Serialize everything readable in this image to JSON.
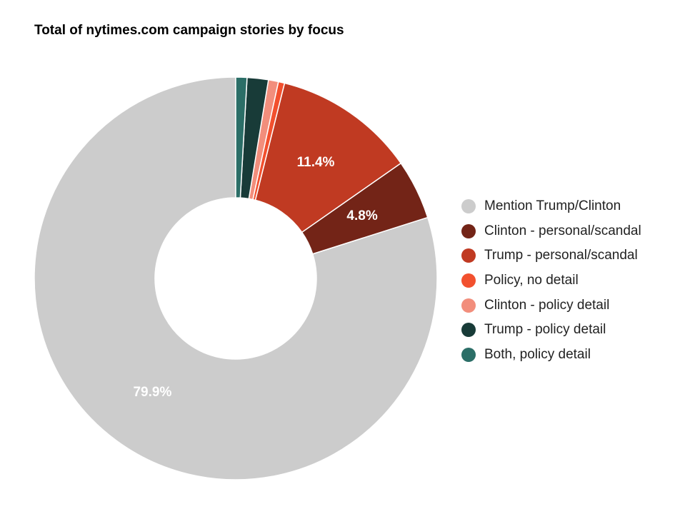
{
  "chart_data": {
    "type": "pie",
    "title": "Total of nytimes.com campaign stories by focus",
    "donut": true,
    "legend_position": "right",
    "slices": [
      {
        "label": "Mention Trump/Clinton",
        "value": 79.9,
        "display_label": "79.9%",
        "color": "#cccccc"
      },
      {
        "label": "Clinton - personal/scandal",
        "value": 4.8,
        "display_label": "4.8%",
        "color": "#732417"
      },
      {
        "label": "Trump - personal/scandal",
        "value": 11.4,
        "display_label": "11.4%",
        "color": "#c03a22"
      },
      {
        "label": "Policy, no detail",
        "value": 0.5,
        "display_label": "",
        "color": "#f2502e"
      },
      {
        "label": "Clinton - policy detail",
        "value": 0.8,
        "display_label": "",
        "color": "#f28e7c"
      },
      {
        "label": "Trump - policy detail",
        "value": 1.7,
        "display_label": "",
        "color": "#183b38"
      },
      {
        "label": "Both, policy detail",
        "value": 0.9,
        "display_label": "",
        "color": "#2b6e67"
      }
    ]
  }
}
